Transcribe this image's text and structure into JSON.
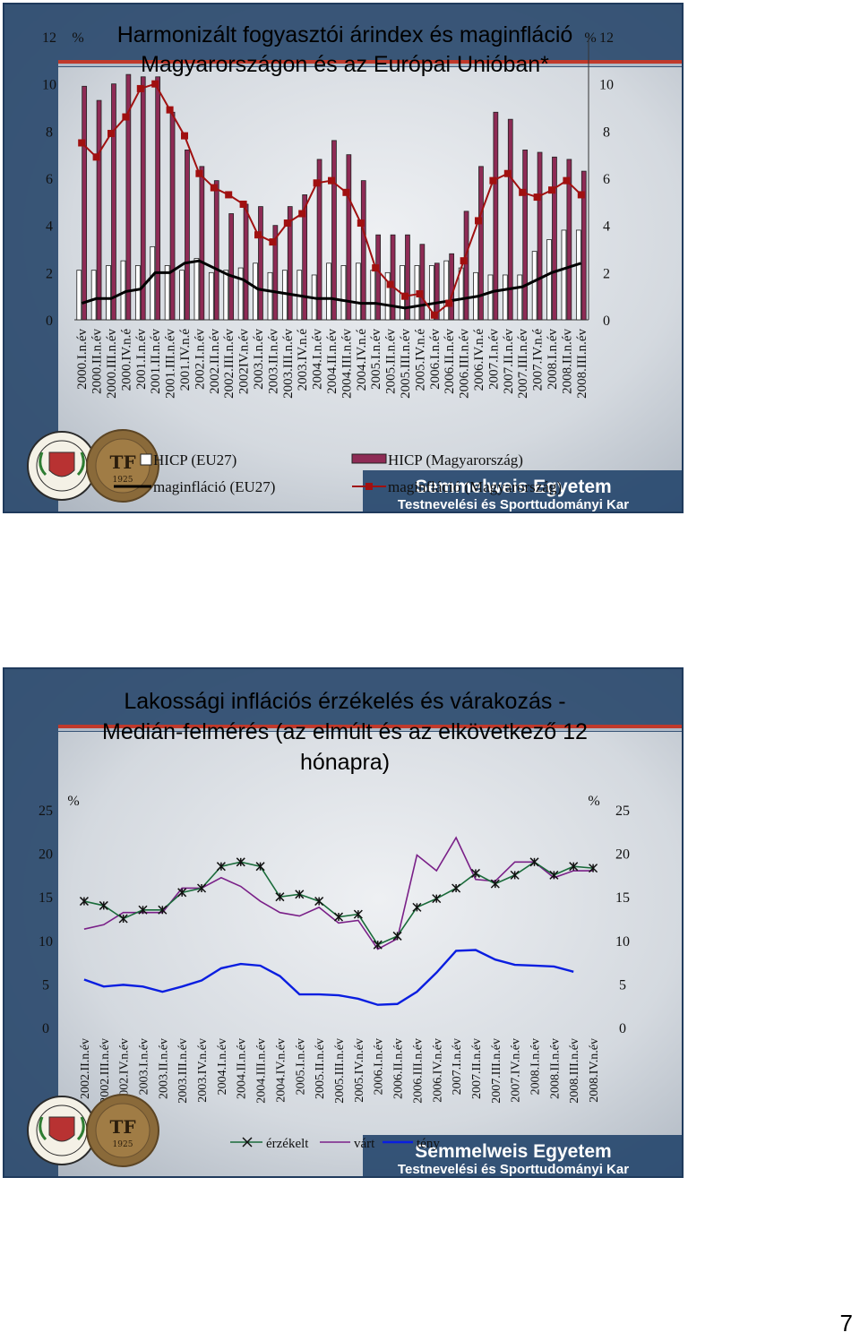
{
  "page_number": "7",
  "footer": {
    "university": "Semmelweis Egyetem",
    "faculty": "Testnevelési és Sporttudományi Kar",
    "tf_label": "TF",
    "tf_year": "1925"
  },
  "chart_data": [
    {
      "type": "bar",
      "title_line1": "Harmonizált fogyasztói árindex és maginfláció",
      "title_line2": "Magyarországon és az Európai Unióban*",
      "unit_left": "%",
      "unit_right": "%",
      "ylim": [
        0,
        12
      ],
      "yticks": [
        0,
        2,
        4,
        6,
        8,
        10,
        12
      ],
      "categories": [
        "2000.I.n.év",
        "2000.II.n.év",
        "2000.III.n.év",
        "2000.IV.n.é",
        "2001.I.n.év",
        "2001.II.n.év",
        "2001.III.n.év",
        "2001.IV.n.é",
        "2002.I.n.év",
        "2002.II.n.év",
        "2002.III.n.év",
        "2002IV.n.év",
        "2003.I.n.év",
        "2003.II.n.év",
        "2003.III.n.év",
        "2003.IV.n.é",
        "2004.I.n.év",
        "2004.II.n.év",
        "2004.III.n.év",
        "2004.IV.n.é",
        "2005.I.n.év",
        "2005.II.n.év",
        "2005.III.n.év",
        "2005.IV.n.é",
        "2006.I.n.év",
        "2006.II.n.év",
        "2006.III.n.év",
        "2006.IV.n.é",
        "2007.I.n.év",
        "2007.II.n.év",
        "2007.III.n.év",
        "2007.IV.n.é",
        "2008.I.n.év",
        "2008.II.n.év",
        "2008.III.n.év"
      ],
      "series": [
        {
          "name": "HICP (EU27)",
          "kind": "bar",
          "color": "#ffffff",
          "values": [
            2.1,
            2.1,
            2.3,
            2.5,
            2.3,
            3.1,
            2.3,
            2.1,
            2.6,
            2.0,
            2.1,
            2.2,
            2.4,
            2.0,
            2.1,
            2.1,
            1.9,
            2.4,
            2.3,
            2.4,
            2.1,
            2.0,
            2.3,
            2.3,
            2.3,
            2.5,
            2.2,
            2.0,
            1.9,
            1.9,
            1.9,
            2.9,
            3.4,
            3.8,
            3.8
          ]
        },
        {
          "name": "HICP (Magyarország)",
          "kind": "bar",
          "color": "#8e2b55",
          "values": [
            9.9,
            9.3,
            10.0,
            10.4,
            10.3,
            10.3,
            8.8,
            7.2,
            6.5,
            5.9,
            4.5,
            4.9,
            4.8,
            4.0,
            4.8,
            5.3,
            6.8,
            7.6,
            7.0,
            5.9,
            3.6,
            3.6,
            3.6,
            3.2,
            2.4,
            2.8,
            4.6,
            6.5,
            8.8,
            8.5,
            7.2,
            7.1,
            6.9,
            6.8,
            6.3
          ]
        },
        {
          "name": "maginfláció (EU27)",
          "kind": "line",
          "color": "#000000",
          "values": [
            0.7,
            0.9,
            0.9,
            1.2,
            1.3,
            2.0,
            2.0,
            2.4,
            2.5,
            2.2,
            1.9,
            1.7,
            1.3,
            1.2,
            1.1,
            1.0,
            0.9,
            0.9,
            0.8,
            0.7,
            0.7,
            0.6,
            0.5,
            0.6,
            0.7,
            0.8,
            0.9,
            1.0,
            1.2,
            1.3,
            1.4,
            1.7,
            2.0,
            2.2,
            2.4
          ]
        },
        {
          "name": "maginfláció (Magyarország)",
          "kind": "line",
          "color": "#a01010",
          "values": [
            7.5,
            6.9,
            7.9,
            8.6,
            9.8,
            10.0,
            8.9,
            7.8,
            6.2,
            5.6,
            5.3,
            4.9,
            3.6,
            3.3,
            4.1,
            4.5,
            5.8,
            5.9,
            5.4,
            4.1,
            2.2,
            1.5,
            1.0,
            1.1,
            0.2,
            0.7,
            2.5,
            4.2,
            5.9,
            6.2,
            5.4,
            5.2,
            5.5,
            5.9,
            5.3
          ]
        }
      ]
    },
    {
      "type": "line",
      "title_line1": "Lakossági inflációs érzékelés és várakozás -",
      "title_line2": "Medián-felmérés (az elmúlt és az elkövetkező 12",
      "title_line3": "hónapra)",
      "unit_left": "%",
      "unit_right": "%",
      "ylim": [
        0,
        25
      ],
      "yticks": [
        0,
        5,
        10,
        15,
        20,
        25
      ],
      "categories": [
        "2002.II.n.év",
        "2002.III.n.év",
        "2002.IV.n.év",
        "2003.I.n.év",
        "2003.II.n.év",
        "2003.III.n.év",
        "2003.IV.n.év",
        "2004.I.n.év",
        "2004.II.n.év",
        "2004.III.n.év",
        "2004.IV.n.év",
        "2005.I.n.év",
        "2005.II.n.év",
        "2005.III.n.év",
        "2005.IV.n.év",
        "2006.I.n.év",
        "2006.II.n.év",
        "2006.III.n.év",
        "2006.IV.n.év",
        "2007.I.n.év",
        "2007.II.n.év",
        "2007.III.n.év",
        "2007.IV.n.év",
        "2008.I.n.év",
        "2008.II.n.év",
        "2008.III.n.év",
        "2008.IV.n.év"
      ],
      "series": [
        {
          "name": "érzékelt",
          "kind": "line-marker",
          "color": "#1a6b3a",
          "values": [
            14.5,
            14.0,
            12.5,
            13.5,
            13.5,
            15.5,
            16.0,
            18.5,
            19.0,
            18.5,
            15.0,
            15.3,
            14.5,
            12.7,
            13.0,
            9.5,
            10.5,
            13.8,
            14.8,
            16.0,
            17.7,
            16.5,
            17.5,
            19.0,
            17.5,
            18.5,
            18.3
          ]
        },
        {
          "name": "várt",
          "kind": "line",
          "color": "#7a2088",
          "values": [
            11.3,
            11.8,
            13.2,
            13.2,
            13.2,
            16.0,
            16.0,
            17.2,
            16.2,
            14.5,
            13.2,
            12.8,
            13.8,
            12.0,
            12.3,
            9.0,
            10.2,
            19.8,
            18.0,
            21.8,
            17.0,
            16.8,
            19.0,
            19.0,
            17.2,
            18.0,
            18.0
          ]
        },
        {
          "name": "tény",
          "kind": "line",
          "color": "#0a1ee0",
          "values": [
            5.5,
            4.7,
            4.9,
            4.7,
            4.1,
            4.7,
            5.4,
            6.8,
            7.3,
            7.1,
            5.9,
            3.8,
            3.8,
            3.7,
            3.3,
            2.6,
            2.7,
            4.1,
            6.3,
            8.8,
            8.9,
            7.8,
            7.2,
            7.1,
            7.0,
            6.4,
            null
          ]
        }
      ]
    }
  ]
}
